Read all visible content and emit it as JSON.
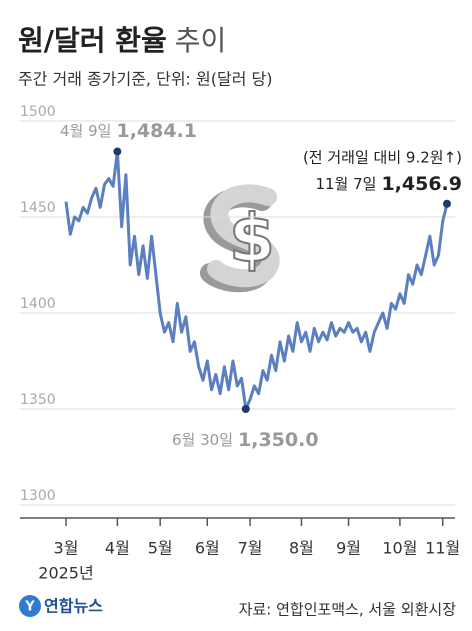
{
  "chart_data": {
    "type": "line",
    "title": "원/달러 환율",
    "title_suffix": "추이",
    "subtitle": "주간 거래 종가기준, 단위: 원(달러 당)",
    "year_label": "2025년",
    "categories": [
      "3월",
      null,
      null,
      null,
      null,
      null,
      null,
      null,
      null,
      null,
      null,
      null,
      "4월",
      null,
      null,
      null,
      null,
      null,
      null,
      null,
      null,
      null,
      "5월",
      null,
      null,
      null,
      null,
      null,
      null,
      null,
      null,
      null,
      null,
      "6월",
      null,
      null,
      null,
      null,
      null,
      null,
      null,
      null,
      null,
      "7월",
      null,
      null,
      null,
      null,
      null,
      null,
      null,
      null,
      null,
      null,
      null,
      "8월",
      null,
      null,
      null,
      null,
      null,
      null,
      null,
      null,
      null,
      null,
      "9월",
      null,
      null,
      null,
      null,
      null,
      null,
      null,
      null,
      null,
      null,
      null,
      "10월",
      null,
      null,
      null,
      null,
      null,
      null,
      null,
      null,
      null,
      "11월",
      null
    ],
    "series": [
      {
        "color": "#5b7fc0",
        "values": [
          1458,
          1441,
          1450,
          1448,
          1455,
          1452,
          1460,
          1465,
          1455,
          1467,
          1470,
          1466,
          1484.1,
          1445,
          1472,
          1425,
          1440,
          1420,
          1435,
          1418,
          1440,
          1420,
          1400,
          1390,
          1395,
          1385,
          1405,
          1390,
          1398,
          1380,
          1385,
          1372,
          1365,
          1375,
          1360,
          1368,
          1358,
          1372,
          1360,
          1375,
          1362,
          1366,
          1350.0,
          1355,
          1362,
          1358,
          1370,
          1365,
          1378,
          1370,
          1385,
          1375,
          1388,
          1380,
          1395,
          1385,
          1390,
          1380,
          1392,
          1385,
          1390,
          1386,
          1395,
          1388,
          1392,
          1390,
          1395,
          1390,
          1392,
          1385,
          1390,
          1380,
          1390,
          1395,
          1400,
          1392,
          1405,
          1402,
          1410,
          1405,
          1420,
          1415,
          1425,
          1420,
          1430,
          1440,
          1425,
          1430,
          1447.7,
          1456.9
        ]
      }
    ],
    "ylim": [
      1300,
      1500
    ],
    "yticks": [
      1300,
      1350,
      1400,
      1450,
      1500
    ],
    "grid": true,
    "annotations": [
      {
        "date": "4월 9일",
        "value": 1484.1,
        "label": "1,484.1"
      },
      {
        "date": "6월 30일",
        "value": 1350.0,
        "label": "1,350.0"
      },
      {
        "date": "11월 7일",
        "value": 1456.9,
        "label": "1,456.9",
        "change": "(전 거래일 대비 9.2원↑)"
      }
    ],
    "source": "자료: 연합인포맥스, 서울 외환시장",
    "logo": "연합뉴스"
  }
}
